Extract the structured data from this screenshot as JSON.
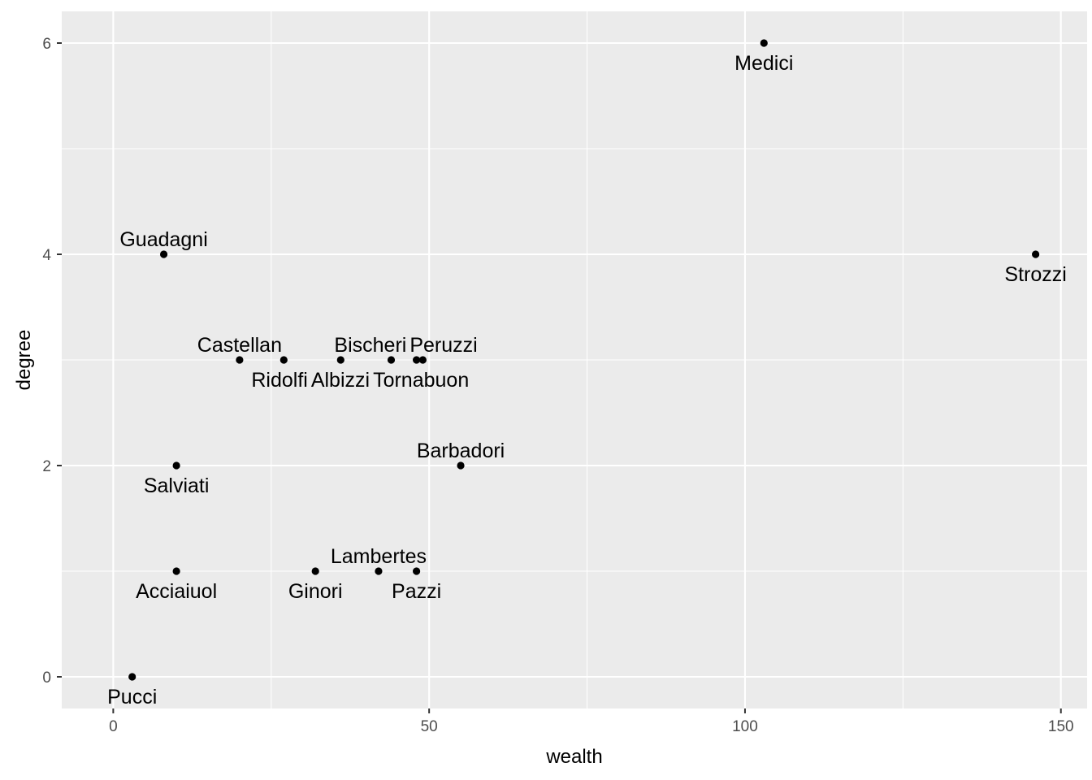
{
  "chart_data": {
    "type": "scatter",
    "title": "",
    "xlabel": "wealth",
    "ylabel": "degree",
    "xlim": [
      -8.15,
      154.15
    ],
    "ylim": [
      -0.3,
      6.3
    ],
    "x_ticks": [
      0,
      50,
      100,
      150
    ],
    "y_ticks": [
      0,
      2,
      4,
      6
    ],
    "x_minor": [
      25,
      75,
      125
    ],
    "y_minor": [
      1,
      3,
      5
    ],
    "grid": true,
    "panel_background": "#EBEBEB",
    "point_color": "#000000",
    "points": [
      {
        "label": "Acciaiuol",
        "x": 10,
        "y": 1,
        "label_pos": "below"
      },
      {
        "label": "Albizzi",
        "x": 36,
        "y": 3,
        "label_pos": "below"
      },
      {
        "label": "Barbadori",
        "x": 55,
        "y": 2,
        "label_pos": "above"
      },
      {
        "label": "Bischeri",
        "x": 44,
        "y": 3,
        "label_pos": "above"
      },
      {
        "label": "Castellan",
        "x": 20,
        "y": 3,
        "label_pos": "above"
      },
      {
        "label": "Ginori",
        "x": 32,
        "y": 1,
        "label_pos": "below"
      },
      {
        "label": "Guadagni",
        "x": 8,
        "y": 4,
        "label_pos": "above"
      },
      {
        "label": "Lambertes",
        "x": 42,
        "y": 1,
        "label_pos": "above"
      },
      {
        "label": "Medici",
        "x": 103,
        "y": 6,
        "label_pos": "below"
      },
      {
        "label": "Pazzi",
        "x": 48,
        "y": 1,
        "label_pos": "below"
      },
      {
        "label": "Peruzzi",
        "x": 49,
        "y": 3,
        "label_pos": "above"
      },
      {
        "label": "Pucci",
        "x": 3,
        "y": 0,
        "label_pos": "below"
      },
      {
        "label": "Ridolfi",
        "x": 27,
        "y": 3,
        "label_pos": "below"
      },
      {
        "label": "Salviati",
        "x": 10,
        "y": 2,
        "label_pos": "below"
      },
      {
        "label": "Strozzi",
        "x": 146,
        "y": 4,
        "label_pos": "below"
      },
      {
        "label": "Tornabuon",
        "x": 48,
        "y": 3,
        "label_pos": "below"
      }
    ]
  }
}
